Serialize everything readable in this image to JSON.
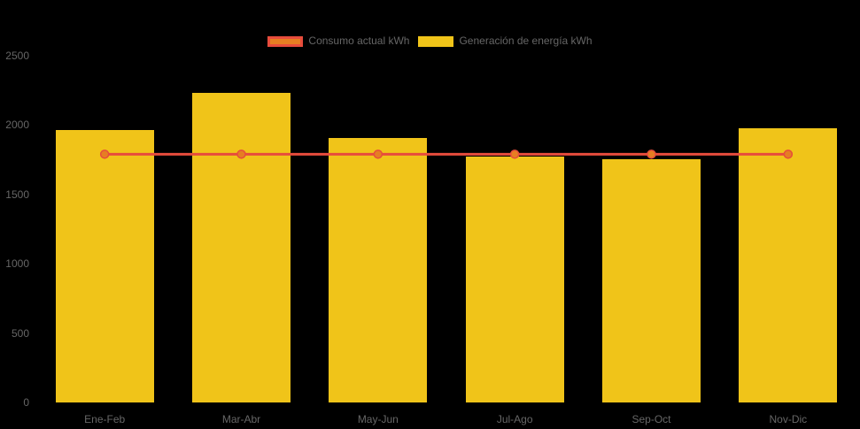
{
  "colors": {
    "background": "#000000",
    "bar_fill": "#F0C419",
    "line_stroke": "#E74C3C",
    "point_fill": "#E67E22",
    "axis_text": "#666666",
    "legend_text": "#666666"
  },
  "legend": {
    "position": "top",
    "items": [
      {
        "label": "Consumo actual kWh",
        "swatch": "line-swatch"
      },
      {
        "label": "Generación de energía kWh",
        "swatch": "bar-swatch"
      }
    ]
  },
  "chart_data": {
    "type": "bar",
    "categories": [
      "Ene-Feb",
      "Mar-Abr",
      "May-Jun",
      "Jul-Ago",
      "Sep-Oct",
      "Nov-Dic"
    ],
    "series": [
      {
        "name": "Consumo actual kWh",
        "type": "line",
        "color": "#E74C3C",
        "point_color": "#E67E22",
        "values": [
          1790,
          1790,
          1790,
          1790,
          1790,
          1790
        ]
      },
      {
        "name": "Generación de energía kWh",
        "type": "bar",
        "color": "#F0C419",
        "values": [
          1965,
          2230,
          1910,
          1770,
          1755,
          1975
        ]
      }
    ],
    "title": "",
    "xlabel": "",
    "ylabel": "",
    "ylim": [
      0,
      2500
    ],
    "yticks": [
      0,
      500,
      1000,
      1500,
      2000,
      2500
    ],
    "grid": false,
    "legend_position": "top"
  }
}
